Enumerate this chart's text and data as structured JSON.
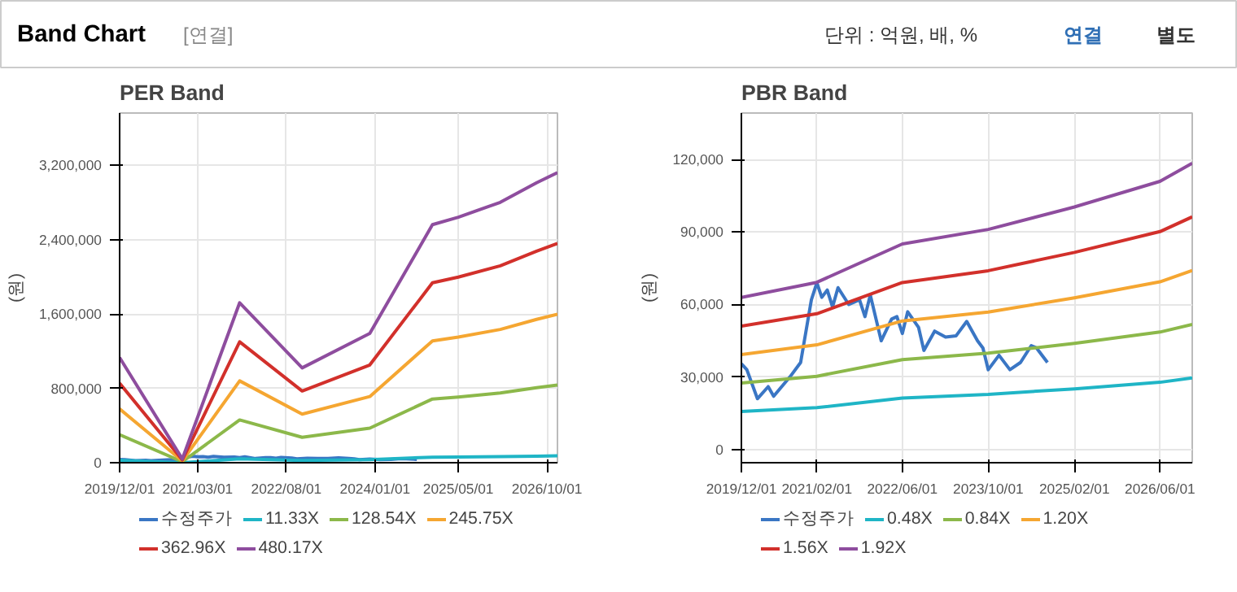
{
  "chart_data": [
    {
      "type": "other",
      "title": "Band Chart",
      "annotations": [
        "[연결]",
        "단위 : 억원, 배, %",
        "연결",
        "별도"
      ]
    },
    {
      "type": "line",
      "title": "PER Band",
      "ylabel": "(원)",
      "grid": true,
      "legend": "bottom",
      "marker": "none",
      "line_style": "solid",
      "x": [
        "2019-12",
        "2020-12",
        "2021-11",
        "2022-11",
        "2023-12",
        "2024-12",
        "2025-05",
        "2026-01",
        "2026-08",
        "2026-12"
      ],
      "xlim": [
        "2019-12-01",
        "2026-12-01"
      ],
      "xticks": [
        {
          "value": "2019-12-01",
          "label": "2019/12/01"
        },
        {
          "value": "2021-03-01",
          "label": "2021/03/01"
        },
        {
          "value": "2022-08-01",
          "label": "2022/08/01"
        },
        {
          "value": "2024-01-01",
          "label": "2024/01/01"
        },
        {
          "value": "2025-05-01",
          "label": "2025/05/01"
        },
        {
          "value": "2026-10-01",
          "label": "2026/10/01"
        }
      ],
      "ylim": [
        0,
        3760000
      ],
      "yticks": [
        0,
        {
          "value": 800000,
          "label": "800,000"
        },
        {
          "value": 1600000,
          "label": "1,600,000"
        },
        {
          "value": 2400000,
          "label": "2,400,000"
        },
        {
          "value": 3200000,
          "label": "3,200,000"
        }
      ],
      "series": [
        {
          "name": "수정주가",
          "color": "#3a76c4",
          "x": [
            "2019-12",
            "2020-01",
            "2020-03",
            "2020-05",
            "2020-06",
            "2020-09",
            "2020-11",
            "2021-01",
            "2021-02",
            "2021-03",
            "2021-04",
            "2021-05",
            "2021-06",
            "2021-08",
            "2021-10",
            "2021-11",
            "2021-12",
            "2022-02",
            "2022-04",
            "2022-05",
            "2022-06",
            "2022-07",
            "2022-09",
            "2022-10",
            "2022-12",
            "2023-02",
            "2023-04",
            "2023-06",
            "2023-08",
            "2023-09",
            "2023-10",
            "2023-12",
            "2024-02",
            "2024-04",
            "2024-06",
            "2024-07",
            "2024-09"
          ],
          "values": [
            35500,
            33000,
            21000,
            26000,
            22000,
            30000,
            36000,
            62000,
            69000,
            63000,
            66000,
            59000,
            67000,
            60000,
            62000,
            55000,
            64000,
            45000,
            54000,
            55000,
            48000,
            57000,
            50500,
            41000,
            49000,
            46500,
            47000,
            53000,
            45000,
            42000,
            33000,
            39000,
            33000,
            36000,
            43000,
            42000,
            36000
          ]
        },
        {
          "name": "11.33X",
          "color": "#1fb5c6",
          "values": [
            27000,
            1000,
            41000,
            24000,
            33000,
            60000,
            62000,
            66000,
            71000,
            74000
          ]
        },
        {
          "name": "128.54X",
          "color": "#8cb84a",
          "values": [
            302000,
            11000,
            460000,
            273000,
            372000,
            685000,
            707000,
            750000,
            806000,
            835000
          ]
        },
        {
          "name": "245.75X",
          "color": "#f5a631",
          "values": [
            578000,
            20000,
            880000,
            522000,
            711000,
            1310000,
            1351000,
            1433000,
            1541000,
            1597000
          ]
        },
        {
          "name": "362.96X",
          "color": "#d2302b",
          "values": [
            854000,
            30000,
            1300000,
            771000,
            1051000,
            1935000,
            1996000,
            2117000,
            2275000,
            2358000
          ]
        },
        {
          "name": "480.17X",
          "color": "#8e4d9e",
          "values": [
            1130000,
            40000,
            1720000,
            1020000,
            1390000,
            2560000,
            2640000,
            2800000,
            3010000,
            3120000
          ]
        }
      ]
    },
    {
      "type": "line",
      "title": "PBR Band",
      "ylabel": "(원)",
      "grid": true,
      "legend": "bottom",
      "marker": "none",
      "line_style": "solid",
      "x": [
        "2019-12",
        "2021-02",
        "2022-06",
        "2023-10",
        "2025-02",
        "2026-06",
        "2026-12"
      ],
      "xlim": [
        "2019-12-01",
        "2026-12-01"
      ],
      "xticks": [
        {
          "value": "2019-12-01",
          "label": "2019/12/01"
        },
        {
          "value": "2021-02-01",
          "label": "2021/02/01"
        },
        {
          "value": "2022-06-01",
          "label": "2022/06/01"
        },
        {
          "value": "2023-10-01",
          "label": "2023/10/01"
        },
        {
          "value": "2025-02-01",
          "label": "2025/02/01"
        },
        {
          "value": "2026-06-01",
          "label": "2026/06/01"
        }
      ],
      "ylim": [
        -5500,
        139300
      ],
      "yticks": [
        0,
        {
          "value": 30000,
          "label": "30,000"
        },
        {
          "value": 60000,
          "label": "60,000"
        },
        {
          "value": 90000,
          "label": "90,000"
        },
        {
          "value": 120000,
          "label": "120,000"
        }
      ],
      "series": [
        {
          "name": "수정주가",
          "color": "#3a76c4",
          "x": [
            "2019-12",
            "2020-01",
            "2020-03",
            "2020-05",
            "2020-06",
            "2020-09",
            "2020-11",
            "2021-01",
            "2021-02",
            "2021-03",
            "2021-04",
            "2021-05",
            "2021-06",
            "2021-08",
            "2021-10",
            "2021-11",
            "2021-12",
            "2022-02",
            "2022-04",
            "2022-05",
            "2022-06",
            "2022-07",
            "2022-09",
            "2022-10",
            "2022-12",
            "2023-02",
            "2023-04",
            "2023-06",
            "2023-08",
            "2023-09",
            "2023-10",
            "2023-12",
            "2024-02",
            "2024-04",
            "2024-06",
            "2024-07",
            "2024-09"
          ],
          "values": [
            35500,
            33000,
            21000,
            26000,
            22000,
            30000,
            36000,
            62000,
            69000,
            63000,
            66000,
            59000,
            67000,
            60000,
            62000,
            55000,
            64000,
            45000,
            54000,
            55000,
            48000,
            57000,
            50500,
            41000,
            49000,
            46500,
            47000,
            53000,
            45000,
            42000,
            33000,
            39000,
            33000,
            36000,
            43000,
            42000,
            36000
          ]
        },
        {
          "name": "0.48X",
          "color": "#1fb5c6",
          "values": [
            15700,
            17300,
            21300,
            22800,
            25100,
            27800,
            29600
          ]
        },
        {
          "name": "0.84X",
          "color": "#8cb84a",
          "values": [
            27500,
            30300,
            37200,
            39900,
            43900,
            48600,
            51800
          ]
        },
        {
          "name": "1.20X",
          "color": "#f5a631",
          "values": [
            39300,
            43300,
            53200,
            56900,
            62800,
            69400,
            74100
          ]
        },
        {
          "name": "1.56X",
          "color": "#d2302b",
          "values": [
            51100,
            56200,
            69100,
            74000,
            81600,
            90200,
            96300
          ]
        },
        {
          "name": "1.92X",
          "color": "#8e4d9e",
          "values": [
            62900,
            69200,
            85100,
            91100,
            100400,
            111000,
            118500
          ]
        }
      ]
    }
  ]
}
